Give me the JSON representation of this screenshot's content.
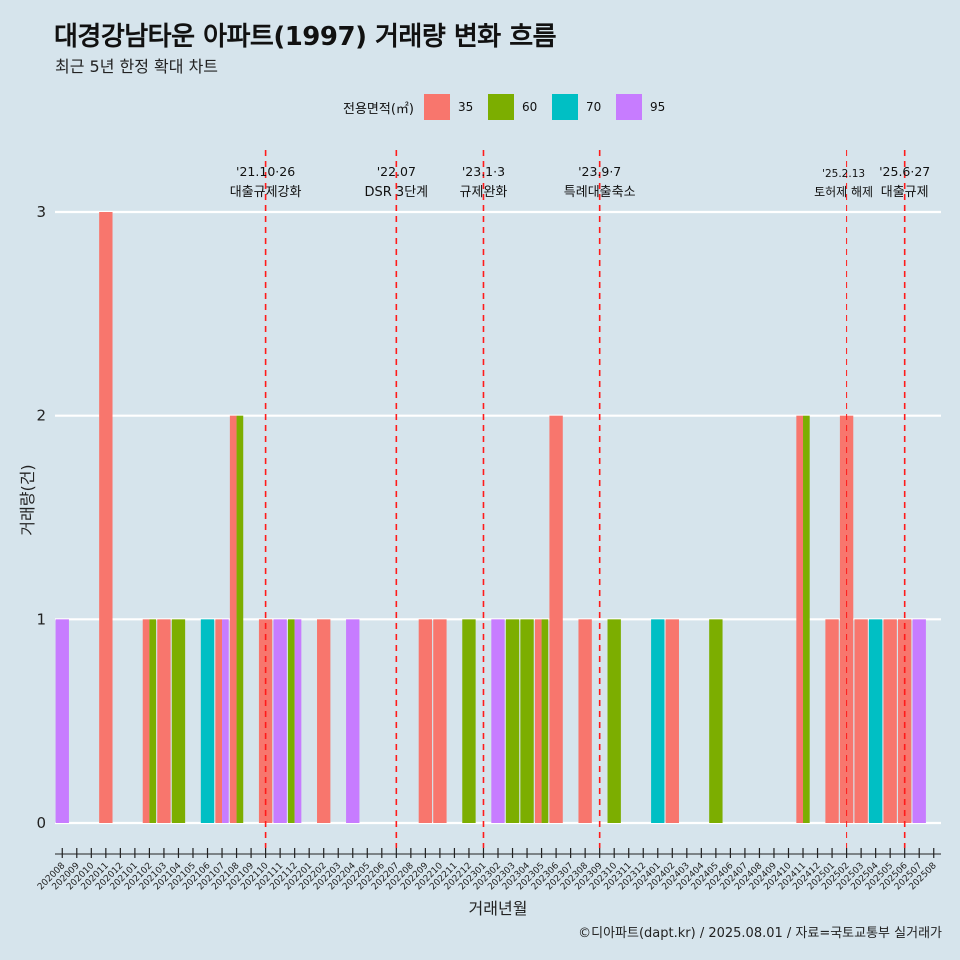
{
  "header": {
    "title": "대경강남타운 아파트(1997) 거래량 변화 흐름",
    "subtitle": "최근 5년 한정 확대 차트"
  },
  "legend": {
    "title": "전용면적(㎡)",
    "items": [
      {
        "label": "35",
        "color": "#f8766d"
      },
      {
        "label": "60",
        "color": "#7cae00"
      },
      {
        "label": "70",
        "color": "#00bfc4"
      },
      {
        "label": "95",
        "color": "#c77cff"
      }
    ]
  },
  "caption": "©디아파트(dapt.kr) / 2025.08.01 / 자료=국토교통부 실거래가",
  "chart_data": {
    "type": "bar",
    "xlabel": "거래년월",
    "ylabel": "거래량(건)",
    "ylim": [
      0,
      3
    ],
    "yticks": [
      0,
      1,
      2,
      3
    ],
    "grid": true,
    "legend_position": "top",
    "categories": [
      "202008",
      "202009",
      "202010",
      "202011",
      "202012",
      "202101",
      "202102",
      "202103",
      "202104",
      "202105",
      "202106",
      "202107",
      "202108",
      "202109",
      "202110",
      "202111",
      "202112",
      "202201",
      "202202",
      "202203",
      "202204",
      "202205",
      "202206",
      "202207",
      "202208",
      "202209",
      "202210",
      "202211",
      "202212",
      "202301",
      "202302",
      "202303",
      "202304",
      "202305",
      "202306",
      "202307",
      "202308",
      "202309",
      "202310",
      "202311",
      "202312",
      "202401",
      "202402",
      "202403",
      "202404",
      "202405",
      "202406",
      "202407",
      "202408",
      "202409",
      "202410",
      "202411",
      "202412",
      "202501",
      "202502",
      "202503",
      "202504",
      "202505",
      "202506",
      "202507",
      "202508"
    ],
    "series": [
      {
        "name": "35",
        "color": "#f8766d",
        "values": {
          "202011": 3,
          "202102": 1,
          "202103": 1,
          "202107": 1,
          "202108": 2,
          "202110": 1,
          "202202": 1,
          "202209": 1,
          "202210": 1,
          "202305": 1,
          "202306": 2,
          "202308": 1,
          "202402": 1,
          "202411": 2,
          "202501": 1,
          "202502": 2,
          "202503": 1,
          "202505": 1,
          "202506": 1
        }
      },
      {
        "name": "60",
        "color": "#7cae00",
        "values": {
          "202102": 1,
          "202104": 1,
          "202108": 2,
          "202112": 1,
          "202212": 1,
          "202303": 1,
          "202304": 1,
          "202305": 1,
          "202310": 1,
          "202405": 1,
          "202411": 2
        }
      },
      {
        "name": "70",
        "color": "#00bfc4",
        "values": {
          "202106": 1,
          "202401": 1,
          "202504": 1
        }
      },
      {
        "name": "95",
        "color": "#c77cff",
        "values": {
          "202008": 1,
          "202107": 1,
          "202111": 1,
          "202112": 1,
          "202204": 1,
          "202302": 1,
          "202507": 1
        }
      }
    ],
    "annotations": [
      {
        "at": "202110",
        "date": "'21.10·26",
        "text": "대출규제강화"
      },
      {
        "at": "202207",
        "date": "'22.07",
        "text": "DSR 3단계"
      },
      {
        "at": "202301",
        "date": "'23.1·3",
        "text": "규제완화"
      },
      {
        "at": "202309",
        "date": "'23.9·7",
        "text": "특례대출축소"
      },
      {
        "at": "202502",
        "date": "'25.2.13",
        "text": "토허제 해제"
      },
      {
        "at": "202506",
        "date": "'25.6·27",
        "text": "대출규제"
      }
    ]
  }
}
